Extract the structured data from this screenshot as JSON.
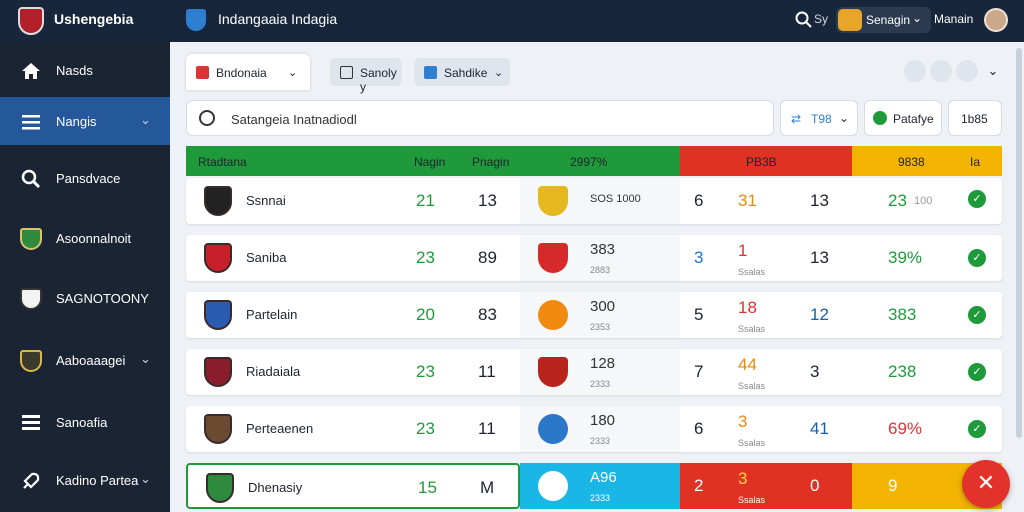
{
  "header": {
    "brand": "Ushengebia",
    "title": "Indangaaia Indagia",
    "lang_label": "Sy",
    "user_chip_label": "Senagin",
    "user_name": "Manain"
  },
  "sidebar": {
    "items": [
      {
        "label": "Nasds"
      },
      {
        "label": "Nangis"
      },
      {
        "label": "Pansdvace"
      },
      {
        "label": "Asoonnalnoit"
      },
      {
        "label": "SAGNOTOONY"
      },
      {
        "label": "Aaboaaagei"
      },
      {
        "label": "Sanoafia"
      },
      {
        "label": "Kadino Partea"
      }
    ]
  },
  "tabs": [
    {
      "label": "Bndonaia"
    },
    {
      "label": "Sanoly y"
    },
    {
      "label": "Sahdike"
    }
  ],
  "search": {
    "value": "Satangeia Inatnadiodl"
  },
  "filters": {
    "sort_label": "T98",
    "action_label": "Patafye",
    "count_label": "1b85"
  },
  "table": {
    "headers": {
      "team": "Rtadtana",
      "col_a": "Nagin",
      "col_b": "Pnagin",
      "col_c": "2997%",
      "col_d": "PB3B",
      "col_e": "9838",
      "col_f": "Ia"
    },
    "rows": [
      {
        "team": "Ssnnai",
        "a": "21",
        "b": "13",
        "center": "SOS 1000",
        "c1": "6",
        "c2": "31",
        "c3": "13",
        "pct": "23",
        "pct_sub": "100"
      },
      {
        "team": "Saniba",
        "a": "23",
        "b": "89",
        "center": "383",
        "center_sub": "2883",
        "c1": "3",
        "c2": "1",
        "c2_sub": "Ssalas",
        "c3": "13",
        "pct": "39%"
      },
      {
        "team": "Partelain",
        "a": "20",
        "b": "83",
        "center": "300",
        "center_sub": "2353",
        "c1": "5",
        "c2": "18",
        "c2_sub": "Ssalas",
        "c3": "12",
        "pct": "383"
      },
      {
        "team": "Riadaiala",
        "a": "23",
        "b": "11",
        "center": "128",
        "center_sub": "2333",
        "c1": "7",
        "c2": "44",
        "c2_sub": "Ssalas",
        "c3": "3",
        "pct": "238"
      },
      {
        "team": "Perteaenen",
        "a": "23",
        "b": "11",
        "center": "180",
        "center_sub": "2333",
        "c1": "6",
        "c2": "3",
        "c2_sub": "Ssalas",
        "c3": "41",
        "pct": "69%"
      },
      {
        "team": "Dhenasiy",
        "a": "15",
        "b": "M",
        "center": "A96",
        "center_sub": "2333",
        "c1": "2",
        "c2": "3",
        "c2_sub": "Ssalas",
        "c3": "0",
        "pct": "9"
      }
    ]
  },
  "colors": {
    "green": "#1f9a3a",
    "red": "#e03223",
    "yellow": "#f2b400",
    "cyan": "#1ab6e6",
    "navy": "#17263a"
  }
}
